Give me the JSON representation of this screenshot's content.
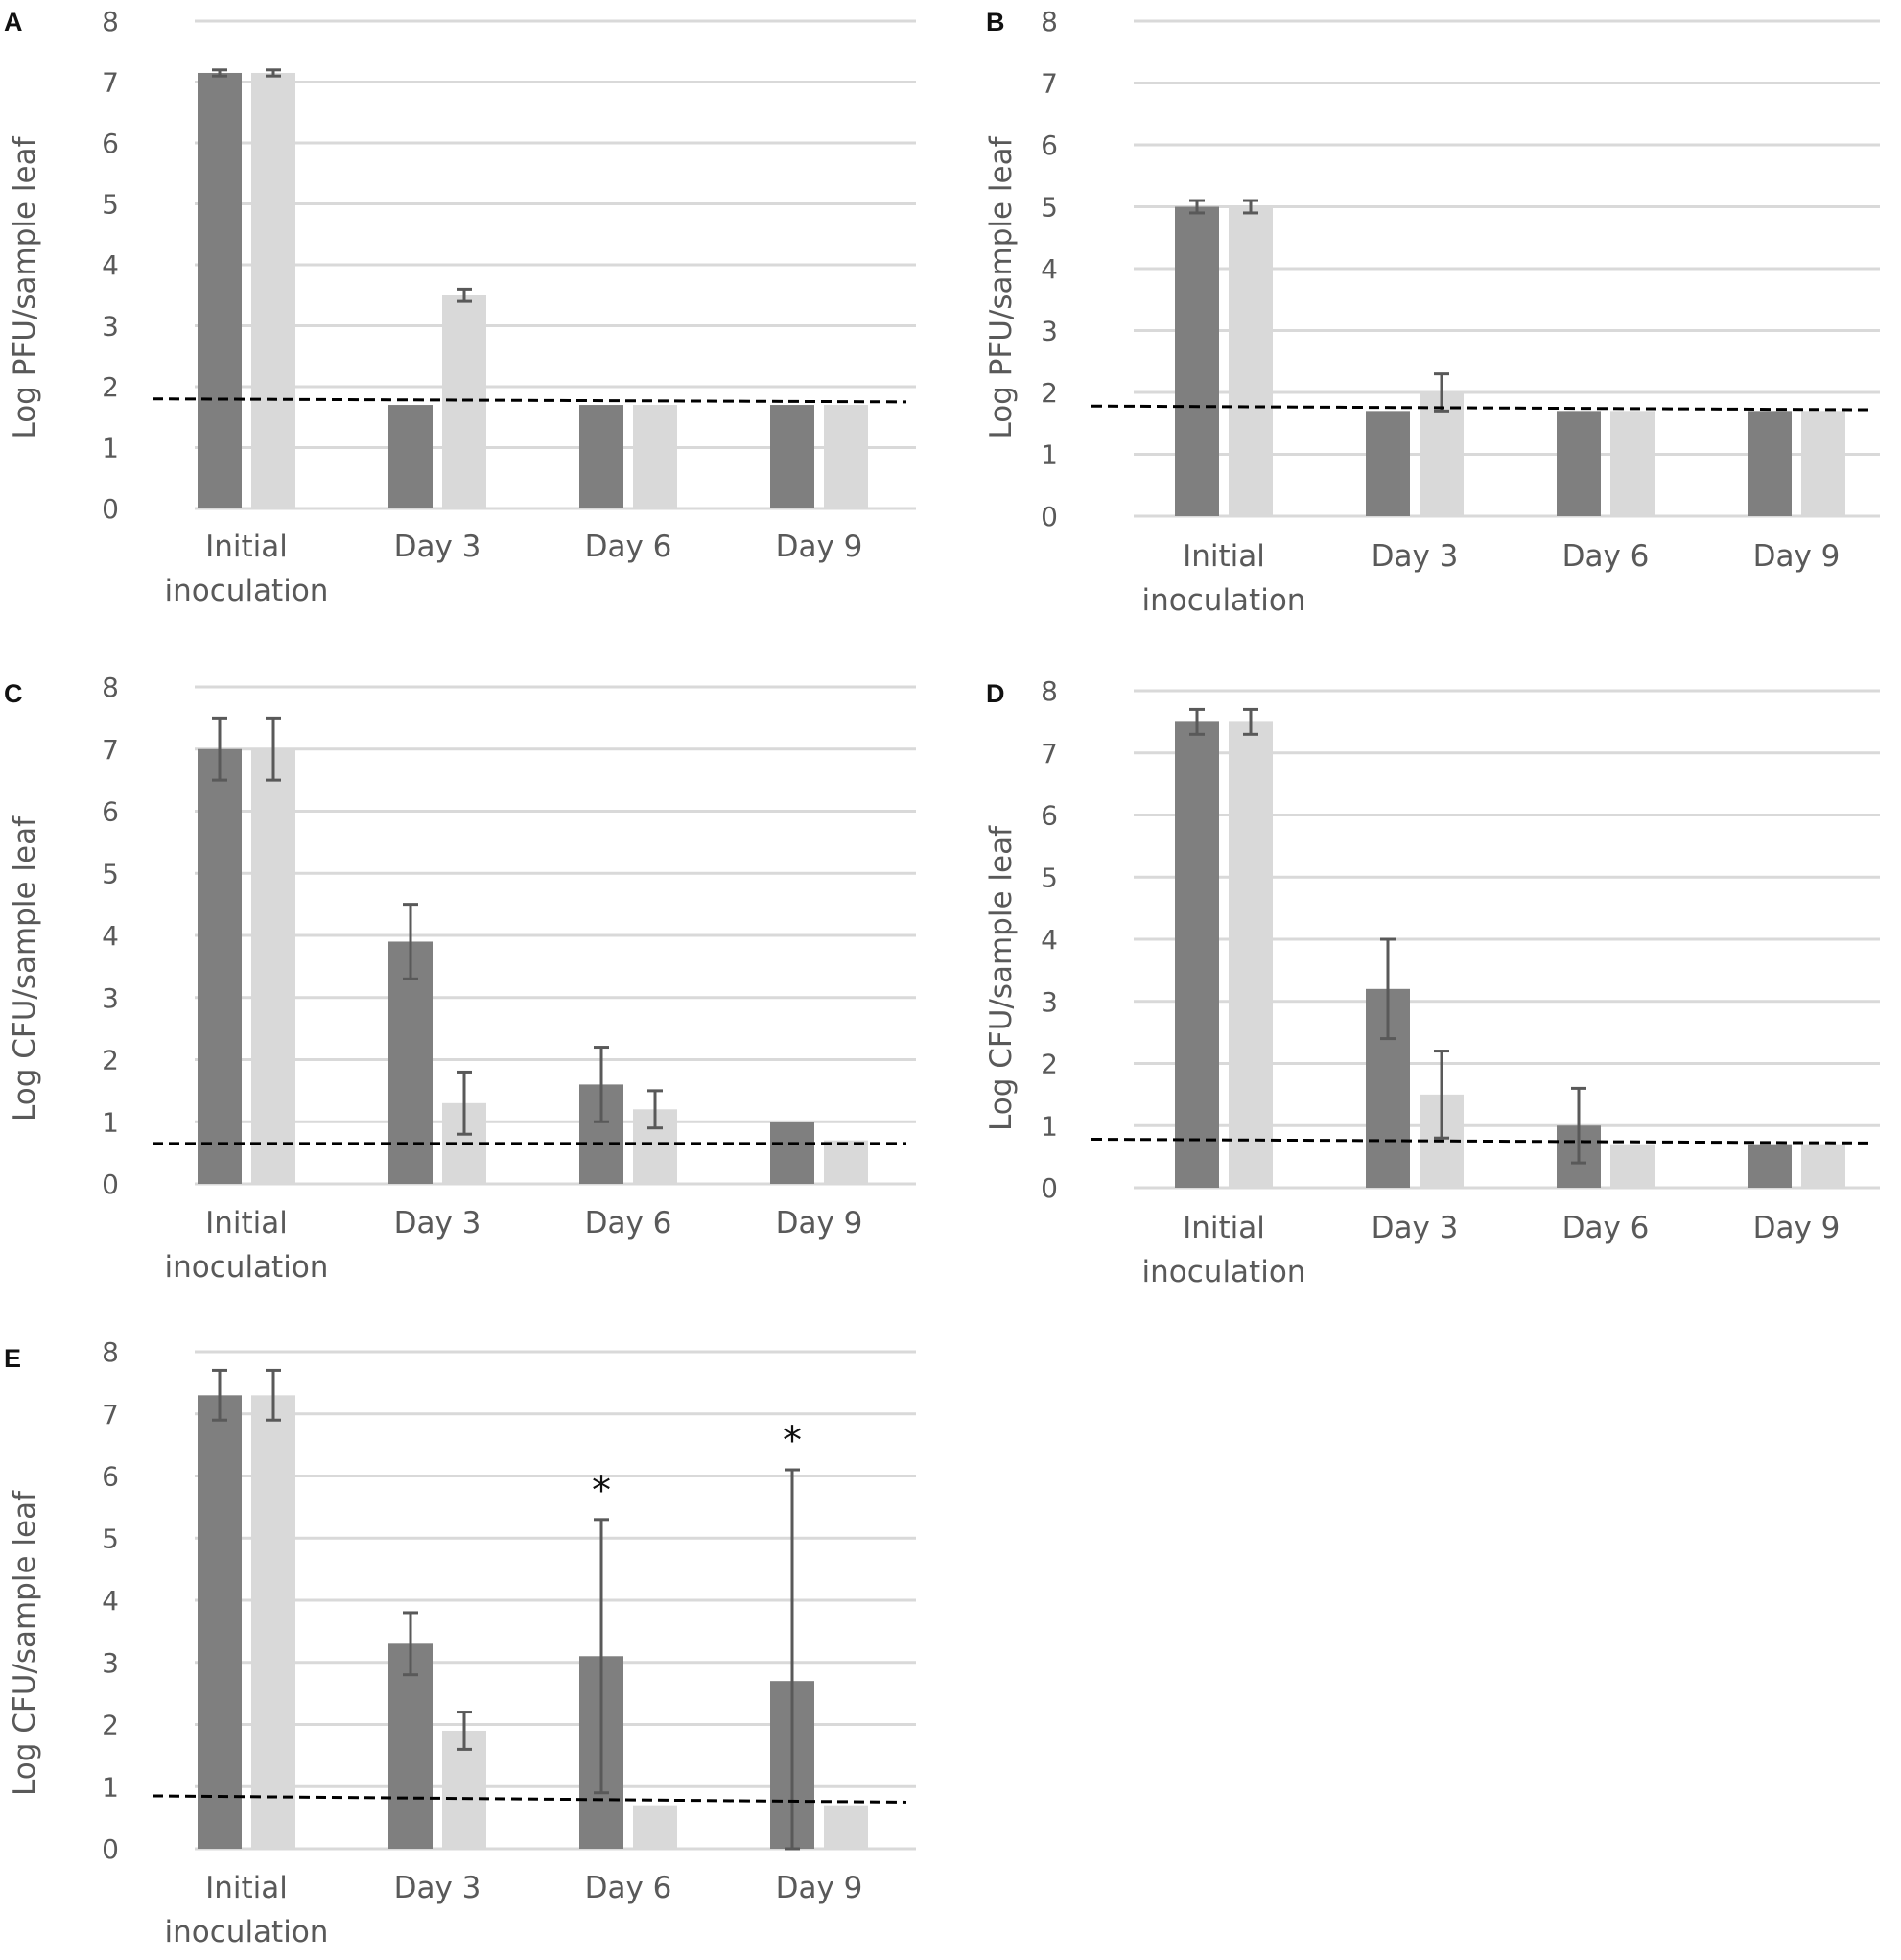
{
  "colors": {
    "dark_bar": "#7f7f7f",
    "light_bar": "#d9d9d9",
    "error_bar": "#595959",
    "grid": "#d9d9d9",
    "dashed": "#000000",
    "text": "#595959"
  },
  "chart_data": [
    {
      "panel": "A",
      "type": "bar",
      "ylabel": "Log PFU/sample leaf",
      "ylim": [
        0,
        8
      ],
      "yticks": [
        "0",
        "1",
        "2",
        "3",
        "4",
        "5",
        "6",
        "7",
        "8"
      ],
      "categories": [
        [
          "Initial",
          "inoculation"
        ],
        [
          "Day 3"
        ],
        [
          "Day 6"
        ],
        [
          "Day 9"
        ]
      ],
      "series": [
        {
          "name": "dark",
          "values": [
            7.15,
            1.7,
            1.7,
            1.7
          ],
          "errors": [
            0.05,
            0,
            0,
            0
          ]
        },
        {
          "name": "light",
          "values": [
            7.15,
            3.5,
            1.7,
            1.7
          ],
          "errors": [
            0.05,
            0.1,
            0,
            0
          ]
        }
      ],
      "detection_limit": [
        1.8,
        1.75
      ],
      "annotations": []
    },
    {
      "panel": "B",
      "type": "bar",
      "ylabel": "Log PFU/sample leaf",
      "ylim": [
        0,
        8
      ],
      "yticks": [
        "0",
        "1",
        "2",
        "3",
        "4",
        "5",
        "6",
        "7",
        "8"
      ],
      "categories": [
        [
          "Initial",
          "inoculation"
        ],
        [
          "Day 3"
        ],
        [
          "Day 6"
        ],
        [
          "Day 9"
        ]
      ],
      "series": [
        {
          "name": "dark",
          "values": [
            5.0,
            1.7,
            1.7,
            1.7
          ],
          "errors": [
            0.1,
            0,
            0,
            0
          ]
        },
        {
          "name": "light",
          "values": [
            5.0,
            2.0,
            1.7,
            1.7
          ],
          "errors": [
            0.1,
            0.3,
            0,
            0
          ]
        }
      ],
      "detection_limit": [
        1.78,
        1.72
      ],
      "annotations": []
    },
    {
      "panel": "C",
      "type": "bar",
      "ylabel": "Log CFU/sample leaf",
      "ylim": [
        0,
        8
      ],
      "yticks": [
        "0",
        "1",
        "2",
        "3",
        "4",
        "5",
        "6",
        "7",
        "8"
      ],
      "categories": [
        [
          "Initial",
          "inoculation"
        ],
        [
          "Day 3"
        ],
        [
          "Day 6"
        ],
        [
          "Day 9"
        ]
      ],
      "series": [
        {
          "name": "dark",
          "values": [
            7.0,
            3.9,
            1.6,
            1.0
          ],
          "errors": [
            0.5,
            0.6,
            0.6,
            0
          ]
        },
        {
          "name": "light",
          "values": [
            7.0,
            1.3,
            1.2,
            0.7
          ],
          "errors": [
            0.5,
            0.5,
            0.3,
            0
          ]
        }
      ],
      "detection_limit": [
        0.65,
        0.65
      ],
      "annotations": []
    },
    {
      "panel": "D",
      "type": "bar",
      "ylabel": "Log CFU/sample leaf",
      "ylim": [
        0,
        8
      ],
      "yticks": [
        "0",
        "1",
        "2",
        "3",
        "4",
        "5",
        "6",
        "7",
        "8"
      ],
      "categories": [
        [
          "Initial",
          "inoculation"
        ],
        [
          "Day 3"
        ],
        [
          "Day 6"
        ],
        [
          "Day 9"
        ]
      ],
      "series": [
        {
          "name": "dark",
          "values": [
            7.5,
            3.2,
            1.0,
            0.7
          ],
          "errors": [
            0.2,
            0.8,
            0.6,
            0
          ]
        },
        {
          "name": "light",
          "values": [
            7.5,
            1.5,
            0.7,
            0.7
          ],
          "errors": [
            0.2,
            0.7,
            0,
            0
          ]
        }
      ],
      "detection_limit": [
        0.78,
        0.72
      ],
      "annotations": []
    },
    {
      "panel": "E",
      "type": "bar",
      "ylabel": "Log CFU/sample leaf",
      "ylim": [
        0,
        8
      ],
      "yticks": [
        "0",
        "1",
        "2",
        "3",
        "4",
        "5",
        "6",
        "7",
        "8"
      ],
      "categories": [
        [
          "Initial",
          "inoculation"
        ],
        [
          "Day 3"
        ],
        [
          "Day 6"
        ],
        [
          "Day 9"
        ]
      ],
      "series": [
        {
          "name": "dark",
          "values": [
            7.3,
            3.3,
            3.1,
            2.7
          ],
          "errors": [
            0.4,
            0.5,
            2.2,
            3.4
          ]
        },
        {
          "name": "light",
          "values": [
            7.3,
            1.9,
            0.7,
            0.7
          ],
          "errors": [
            0.4,
            0.3,
            0,
            0
          ]
        }
      ],
      "detection_limit": [
        0.85,
        0.75
      ],
      "annotations": [
        {
          "category": 2,
          "text": "*",
          "value": 5.9
        },
        {
          "category": 3,
          "text": "*",
          "value": 6.7
        }
      ]
    }
  ]
}
